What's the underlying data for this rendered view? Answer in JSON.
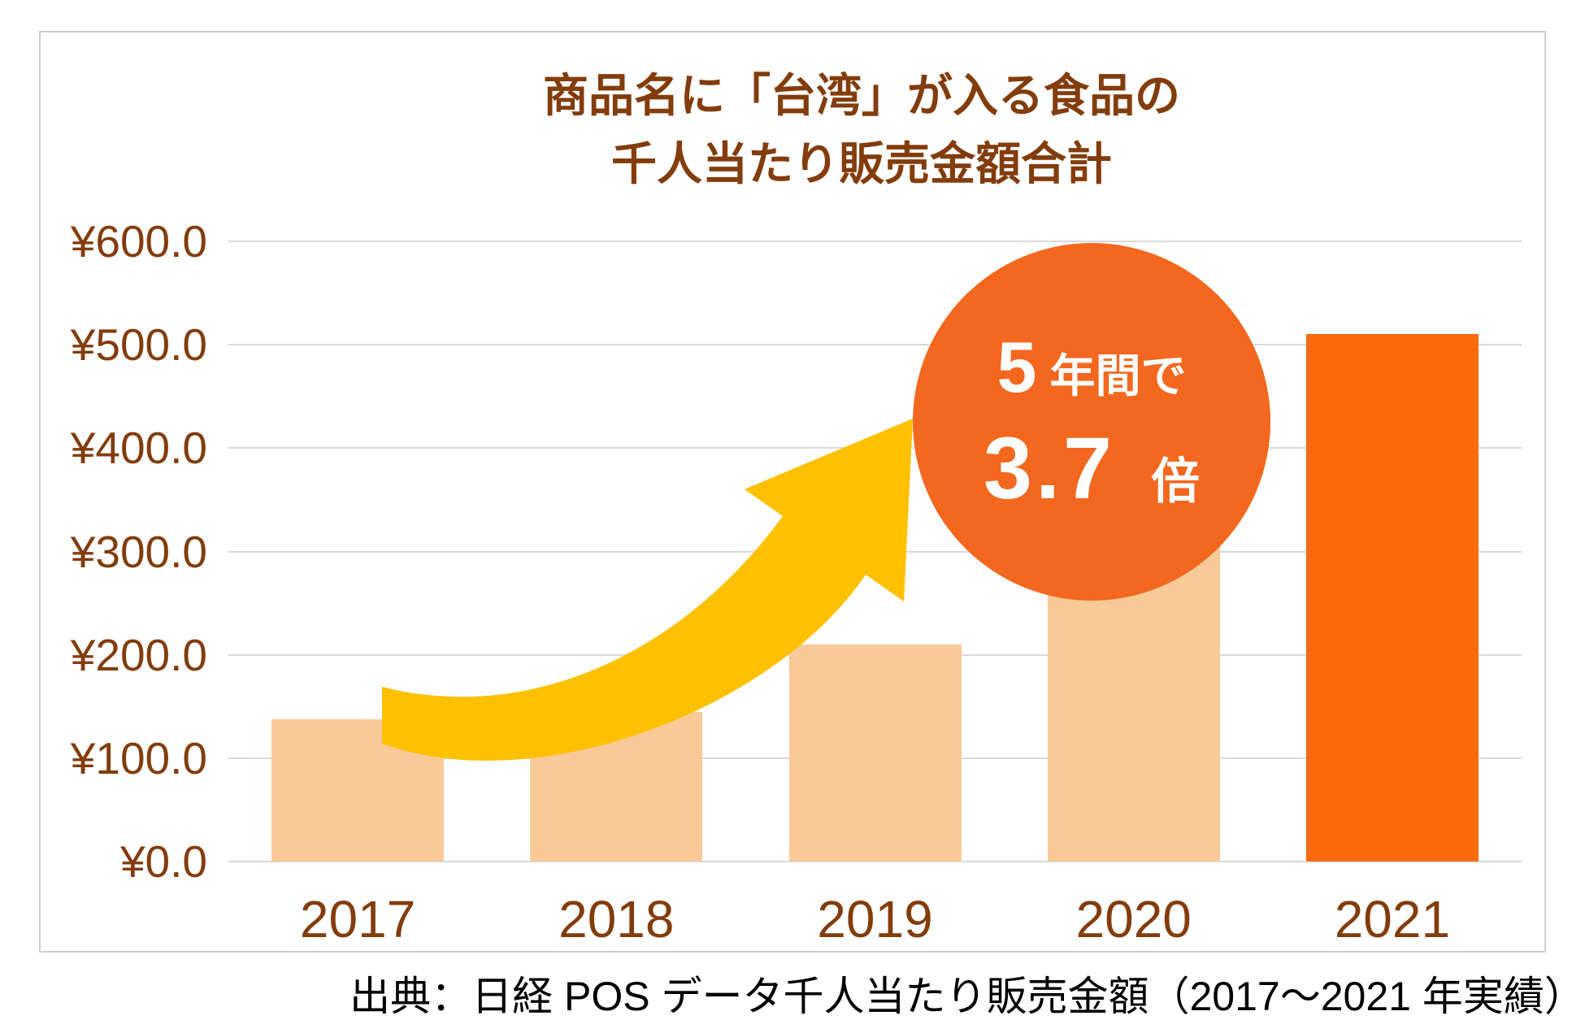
{
  "chart_data": {
    "type": "bar",
    "title": "商品名に「台湾」が入る食品の千人当たり販売金額合計",
    "title_lines": [
      "商品名に「台湾」が入る食品の",
      "千人当たり販売金額合計"
    ],
    "categories": [
      "2017",
      "2018",
      "2019",
      "2020",
      "2021"
    ],
    "values": [
      138,
      145,
      210,
      330,
      510
    ],
    "unit": "¥",
    "xlabel": "",
    "ylabel": "",
    "ylim": [
      0,
      600
    ],
    "ytick_step": 100,
    "ytick_labels": [
      "¥600.0",
      "¥500.0",
      "¥400.0",
      "¥300.0",
      "¥200.0",
      "¥100.0",
      "¥0.0"
    ],
    "grid": true,
    "legend": "none",
    "highlight_index": 4,
    "annotation": {
      "line1_big": "5",
      "line1_small": "年間で",
      "line2_big": "3.7",
      "line2_small": "倍",
      "meaning": "5年間で3.7倍"
    }
  },
  "caption": "出典：日経 POS データ千人当たり販売金額（2017～2021 年実績）",
  "colors": {
    "brown": "#833C0C",
    "gridline": "#D9D9D9",
    "bar_default": "#F9CA98",
    "bar_highlight": "#FA6A0A",
    "badge": "#F3681E",
    "arrow": "#FFC000",
    "caption": "#000000",
    "frame_border": "#CFCFCF"
  }
}
